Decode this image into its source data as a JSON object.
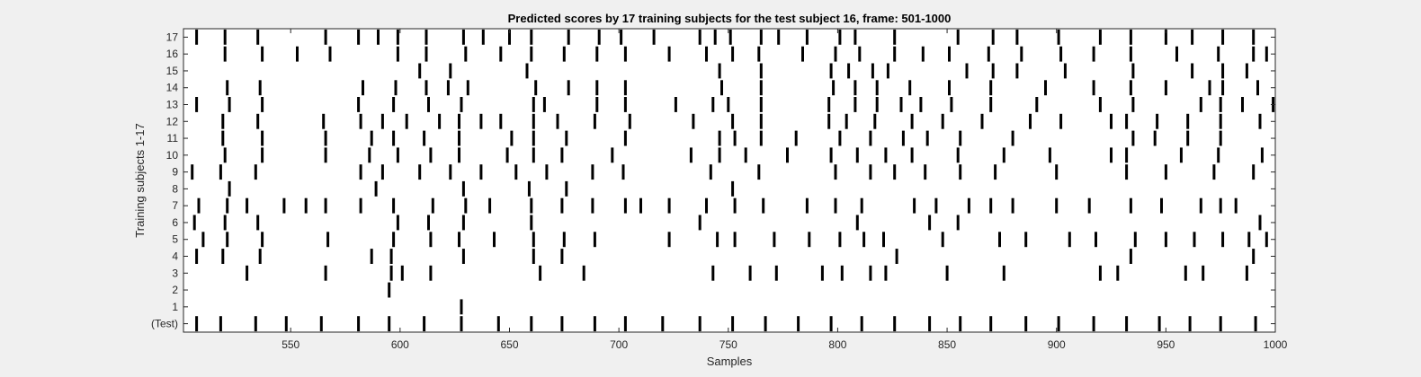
{
  "chart_data": {
    "type": "scatter",
    "title": "Predicted scores by 17 training subjects for the test subject 16, frame: 501-1000",
    "xlabel": "Samples",
    "ylabel": "Training subjects 1-17",
    "xlim": [
      501,
      1000
    ],
    "ylim": [
      -0.5,
      17.5
    ],
    "xticks": [
      550,
      600,
      650,
      700,
      750,
      800,
      850,
      900,
      950,
      1000
    ],
    "yticks": [
      0,
      1,
      2,
      3,
      4,
      5,
      6,
      7,
      8,
      9,
      10,
      11,
      12,
      13,
      14,
      15,
      16,
      17
    ],
    "ytick_labels": [
      "(Test)",
      "1",
      "2",
      "3",
      "4",
      "5",
      "6",
      "7",
      "8",
      "9",
      "10",
      "11",
      "12",
      "13",
      "14",
      "15",
      "16",
      "17"
    ],
    "grid": false,
    "marker_color": "#000000",
    "series": [
      {
        "row": 0,
        "x": [
          507,
          518,
          534,
          548,
          564,
          581,
          595,
          611,
          628,
          645,
          660,
          674,
          689,
          703,
          720,
          737,
          752,
          767,
          782,
          797,
          811,
          826,
          842,
          856,
          870,
          886,
          901,
          917,
          932,
          947,
          961,
          975,
          991
        ]
      },
      {
        "row": 1,
        "x": [
          628
        ]
      },
      {
        "row": 2,
        "x": [
          595
        ]
      },
      {
        "row": 3,
        "x": [
          530,
          566,
          596,
          601,
          614,
          664,
          684,
          743,
          760,
          772,
          793,
          802,
          815,
          822,
          850,
          876,
          920,
          928,
          959,
          967,
          987
        ]
      },
      {
        "row": 4,
        "x": [
          507,
          519,
          536,
          587,
          596,
          629,
          661,
          674,
          827,
          934,
          990
        ]
      },
      {
        "row": 5,
        "x": [
          510,
          521,
          537,
          567,
          597,
          614,
          627,
          643,
          661,
          675,
          689,
          723,
          745,
          753,
          771,
          787,
          801,
          812,
          821,
          848,
          874,
          886,
          906,
          918,
          936,
          950,
          963,
          976,
          988,
          996
        ]
      },
      {
        "row": 6,
        "x": [
          506,
          520,
          535,
          599,
          613,
          629,
          660,
          737,
          809,
          842,
          855,
          993
        ]
      },
      {
        "row": 7,
        "x": [
          508,
          521,
          530,
          547,
          557,
          566,
          582,
          597,
          615,
          630,
          641,
          660,
          674,
          688,
          703,
          710,
          723,
          740,
          753,
          766,
          786,
          799,
          811,
          835,
          845,
          860,
          870,
          880,
          900,
          915,
          934,
          948,
          966,
          975,
          982
        ]
      },
      {
        "row": 8,
        "x": [
          522,
          589,
          629,
          659,
          676,
          752
        ]
      },
      {
        "row": 9,
        "x": [
          505,
          518,
          534,
          582,
          592,
          609,
          623,
          637,
          653,
          667,
          688,
          702,
          742,
          764,
          799,
          815,
          826,
          840,
          856,
          872,
          900,
          932,
          950,
          972,
          990
        ]
      },
      {
        "row": 10,
        "x": [
          520,
          537,
          566,
          586,
          599,
          614,
          627,
          649,
          661,
          674,
          697,
          733,
          746,
          758,
          777,
          797,
          809,
          822,
          834,
          855,
          876,
          897,
          925,
          932,
          957,
          974,
          994
        ]
      },
      {
        "row": 11,
        "x": [
          519,
          537,
          566,
          587,
          597,
          611,
          627,
          651,
          661,
          676,
          703,
          746,
          753,
          765,
          781,
          801,
          815,
          830,
          841,
          856,
          880,
          935,
          945,
          960,
          975
        ]
      },
      {
        "row": 12,
        "x": [
          519,
          535,
          565,
          582,
          592,
          603,
          618,
          627,
          637,
          646,
          661,
          672,
          689,
          705,
          734,
          752,
          765,
          796,
          804,
          817,
          834,
          848,
          866,
          888,
          902,
          925,
          932,
          946,
          960,
          975,
          993
        ]
      },
      {
        "row": 13,
        "x": [
          507,
          522,
          537,
          581,
          597,
          613,
          628,
          661,
          666,
          690,
          703,
          726,
          743,
          750,
          765,
          796,
          808,
          818,
          829,
          838,
          852,
          870,
          891,
          920,
          935,
          966,
          975,
          985,
          999
        ]
      },
      {
        "row": 14,
        "x": [
          521,
          536,
          583,
          598,
          612,
          622,
          631,
          662,
          677,
          690,
          703,
          747,
          765,
          798,
          808,
          818,
          833,
          851,
          870,
          895,
          917,
          934,
          950,
          970,
          976,
          992
        ]
      },
      {
        "row": 15,
        "x": [
          609,
          623,
          658,
          746,
          765,
          797,
          805,
          816,
          823,
          859,
          871,
          882,
          904,
          935,
          962,
          976,
          987
        ]
      },
      {
        "row": 16,
        "x": [
          520,
          537,
          553,
          568,
          599,
          612,
          630,
          646,
          660,
          675,
          690,
          703,
          723,
          740,
          752,
          764,
          784,
          799,
          810,
          826,
          839,
          851,
          869,
          884,
          902,
          917,
          934,
          955,
          974,
          990,
          996
        ]
      },
      {
        "row": 17,
        "x": [
          507,
          520,
          535,
          566,
          581,
          590,
          599,
          612,
          629,
          638,
          650,
          660,
          677,
          691,
          701,
          716,
          737,
          744,
          751,
          765,
          773,
          786,
          801,
          808,
          826,
          855,
          871,
          882,
          901,
          920,
          934,
          950,
          962,
          976,
          990
        ]
      }
    ]
  }
}
